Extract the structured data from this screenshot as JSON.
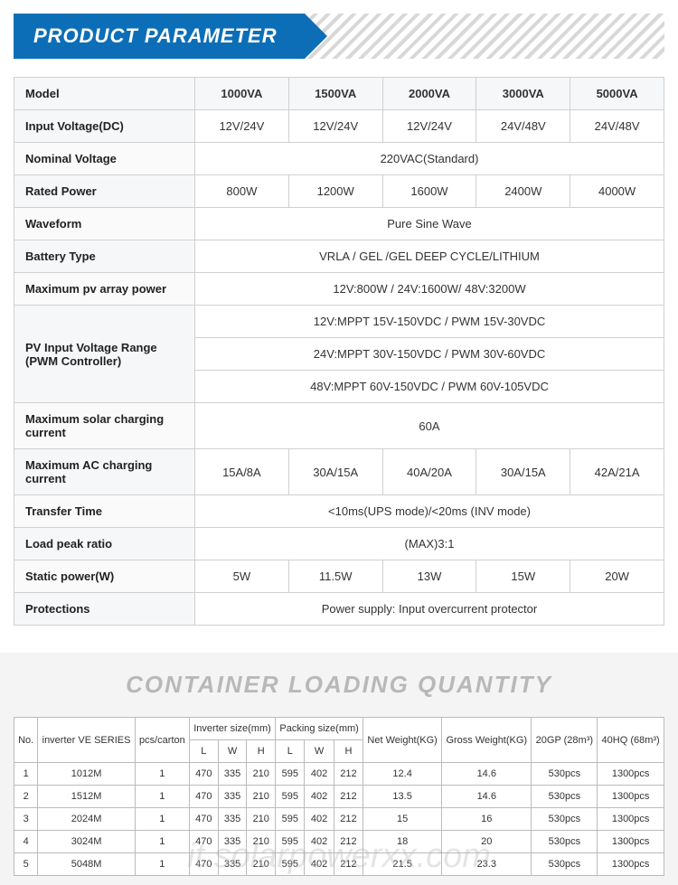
{
  "title1": "PRODUCT PARAMETER",
  "colors": {
    "header_bg": "#0d6eb8",
    "header_text": "#ffffff",
    "border": "#d0d0d0",
    "alt_row": "#f6f7f9",
    "section2_bg": "#f4f4f4",
    "section2_title": "#b8b8b8"
  },
  "spec": {
    "headers": [
      "Model",
      "1000VA",
      "1500VA",
      "2000VA",
      "3000VA",
      "5000VA"
    ],
    "rows": [
      {
        "label": "Input Voltage(DC)",
        "cells": [
          "12V/24V",
          "12V/24V",
          "12V/24V",
          "24V/48V",
          "24V/48V"
        ]
      },
      {
        "label": "Nominal Voltage",
        "span": "220VAC(Standard)"
      },
      {
        "label": "Rated Power",
        "cells": [
          "800W",
          "1200W",
          "1600W",
          "2400W",
          "4000W"
        ]
      },
      {
        "label": "Waveform",
        "span": "Pure Sine Wave"
      },
      {
        "label": "Battery Type",
        "span": "VRLA / GEL /GEL DEEP CYCLE/LITHIUM"
      },
      {
        "label": "Maximum pv array power",
        "span": "12V:800W / 24V:1600W/ 48V:3200W"
      },
      {
        "label": "PV Input Voltage Range (PWM Controller)",
        "rowspan": 3,
        "span": "12V:MPPT 15V-150VDC / PWM 15V-30VDC"
      },
      {
        "label": null,
        "span": "24V:MPPT 30V-150VDC / PWM 30V-60VDC"
      },
      {
        "label": null,
        "span": "48V:MPPT 60V-150VDC / PWM 60V-105VDC"
      },
      {
        "label": "Maximum solar charging current",
        "span": "60A"
      },
      {
        "label": "Maximum AC charging current",
        "cells": [
          "15A/8A",
          "30A/15A",
          "40A/20A",
          "30A/15A",
          "42A/21A"
        ]
      },
      {
        "label": "Transfer Time",
        "span": "<10ms(UPS mode)/<20ms (INV mode)"
      },
      {
        "label": "Load peak ratio",
        "span": "(MAX)3:1"
      },
      {
        "label": "Static power(W)",
        "cells": [
          "5W",
          "11.5W",
          "13W",
          "15W",
          "20W"
        ]
      },
      {
        "label": "Protections",
        "span": "Power supply: Input overcurrent protector"
      }
    ]
  },
  "title2": "CONTAINER LOADING QUANTITY",
  "load": {
    "headers_top": [
      "No.",
      "inverter VE SERIES",
      "pcs/carton",
      "Inverter size(mm)",
      "Packing size(mm)",
      "Net Weight(KG)",
      "Gross Weight(KG)",
      "20GP (28m³)",
      "40HQ (68m³)"
    ],
    "sub": [
      "L",
      "W",
      "H",
      "L",
      "W",
      "H"
    ],
    "rows": [
      [
        "1",
        "1012M",
        "1",
        "470",
        "335",
        "210",
        "595",
        "402",
        "212",
        "12.4",
        "14.6",
        "530pcs",
        "1300pcs"
      ],
      [
        "2",
        "1512M",
        "1",
        "470",
        "335",
        "210",
        "595",
        "402",
        "212",
        "13.5",
        "14.6",
        "530pcs",
        "1300pcs"
      ],
      [
        "3",
        "2024M",
        "1",
        "470",
        "335",
        "210",
        "595",
        "402",
        "212",
        "15",
        "16",
        "530pcs",
        "1300pcs"
      ],
      [
        "4",
        "3024M",
        "1",
        "470",
        "335",
        "210",
        "595",
        "402",
        "212",
        "18",
        "20",
        "530pcs",
        "1300pcs"
      ],
      [
        "5",
        "5048M",
        "1",
        "470",
        "335",
        "210",
        "595",
        "402",
        "212",
        "21.5",
        "23.3",
        "530pcs",
        "1300pcs"
      ]
    ]
  },
  "watermark": "it.solarpowerxx.com"
}
